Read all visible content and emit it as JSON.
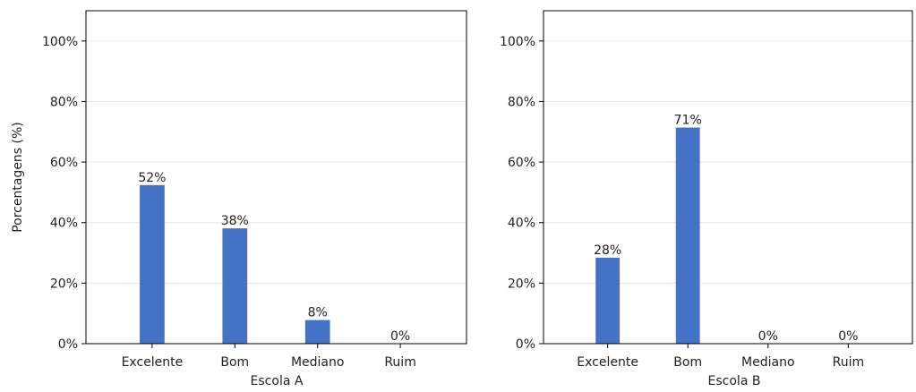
{
  "chart_data": [
    {
      "type": "bar",
      "categories": [
        "Excelente",
        "Bom",
        "Mediano",
        "Ruim"
      ],
      "values": [
        52.4,
        38.1,
        7.8,
        0
      ],
      "data_labels": [
        "52%",
        "38%",
        "8%",
        "0%"
      ],
      "xlabel": "Escola A",
      "ylabel": "Porcentagens (%)",
      "ylim": [
        0,
        110
      ],
      "yticks": [
        0,
        20,
        40,
        60,
        80,
        100
      ],
      "ytick_labels": [
        "0%",
        "20%",
        "40%",
        "60%",
        "80%",
        "100%"
      ],
      "grid": "y",
      "bar_color": "#4472c4"
    },
    {
      "type": "bar",
      "categories": [
        "Excelente",
        "Bom",
        "Mediano",
        "Ruim"
      ],
      "values": [
        28.4,
        71.4,
        0,
        0
      ],
      "data_labels": [
        "28%",
        "71%",
        "0%",
        "0%"
      ],
      "xlabel": "Escola B",
      "ylabel": "",
      "ylim": [
        0,
        110
      ],
      "yticks": [
        0,
        20,
        40,
        60,
        80,
        100
      ],
      "ytick_labels": [
        "0%",
        "20%",
        "40%",
        "60%",
        "80%",
        "100%"
      ],
      "grid": "y",
      "bar_color": "#4472c4"
    }
  ]
}
